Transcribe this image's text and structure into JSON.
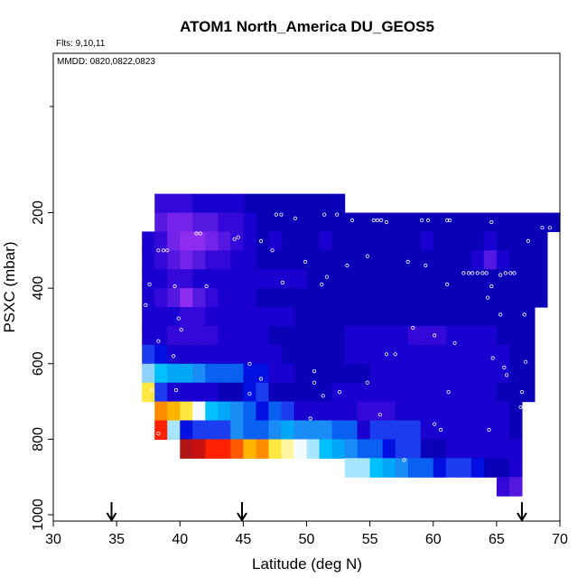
{
  "chart_data": {
    "type": "heatmap",
    "title": "ATOM1 North_America DU_GEOS5",
    "annotations": {
      "flights": "Flts: 9,10,11",
      "dates": "MMDD: 0820,0822,0823"
    },
    "xlabel": "Latitude (deg N)",
    "ylabel": "PSXC (mbar)",
    "xlim": [
      30,
      70
    ],
    "ylim": [
      1000,
      0
    ],
    "y_reversed": true,
    "x_ticks": [
      "30",
      "35",
      "40",
      "45",
      "50",
      "55",
      "60",
      "65",
      "70"
    ],
    "y_ticks": [
      "200",
      "400",
      "600",
      "800",
      "1000"
    ],
    "grid": false,
    "arrows_at_latitude": [
      34.6,
      44.9,
      67.0
    ],
    "colors": {
      "very_low": "#000080",
      "low": "#2a00c8",
      "mid_low": "#5010e0",
      "high": "#8f2cf2",
      "cyan": "#00b0f0",
      "white": "#f8f8ff",
      "yellow": "#fff070",
      "orange": "#ff9000",
      "red": "#ff1000",
      "dark_red": "#b01010",
      "marker": "#ffffff"
    },
    "cell_grid": {
      "lat_start": 34.0,
      "lat_step": 1.0,
      "pres_start": 150,
      "pres_step": 50,
      "rows": [
        [
          "",
          "",
          "",
          "",
          "v3",
          "v3",
          "v3",
          "v2",
          "v2",
          "v2",
          "v2",
          "v1",
          "v1",
          "v1",
          "v1",
          "v1",
          "v1",
          "v1",
          "v1",
          "",
          "",
          "",
          "",
          "",
          "",
          "",
          "",
          "",
          "",
          "",
          "",
          "",
          "",
          "",
          "",
          ""
        ],
        [
          "",
          "",
          "",
          "",
          "v4",
          "v5",
          "v5",
          "v4",
          "v4",
          "v3",
          "v3",
          "v2",
          "v1",
          "v1",
          "v1",
          "v1",
          "v1",
          "v1",
          "v1",
          "v1",
          "v1",
          "v1",
          "v1",
          "v1",
          "v1",
          "v1",
          "v1",
          "v1",
          "v1",
          "v1",
          "v1",
          "v1",
          "v1",
          "v1",
          "v1",
          "v1"
        ],
        [
          "",
          "",
          "",
          "v2",
          "v3",
          "v5",
          "v6",
          "v6",
          "v5",
          "v4",
          "v3",
          "v2",
          "v1",
          "v2",
          "v1",
          "v1",
          "v1",
          "v2",
          "v1",
          "v1",
          "v1",
          "v1",
          "v1",
          "v1",
          "v1",
          "v2",
          "v1",
          "v1",
          "v1",
          "v1",
          "v2",
          "v1",
          "v1",
          "v1",
          "v1",
          ""
        ],
        [
          "",
          "",
          "",
          "v2",
          "v3",
          "v4",
          "v5",
          "v4",
          "v3",
          "v3",
          "v2",
          "v2",
          "v1",
          "v1",
          "v1",
          "v1",
          "v1",
          "v1",
          "v1",
          "v1",
          "v1",
          "v1",
          "v1",
          "v1",
          "v1",
          "v1",
          "v1",
          "v1",
          "v1",
          "v2",
          "v4",
          "v2",
          "v1",
          "v1",
          "v1",
          ""
        ],
        [
          "",
          "",
          "",
          "v2",
          "v2",
          "v3",
          "v3",
          "v2",
          "v2",
          "v2",
          "v2",
          "v2",
          "v2",
          "v2",
          "v2",
          "v2",
          "v1",
          "v1",
          "v1",
          "v1",
          "v1",
          "v1",
          "v1",
          "v1",
          "v1",
          "v1",
          "v1",
          "v1",
          "v1",
          "v1",
          "v1",
          "v1",
          "v1",
          "v1",
          "v1",
          ""
        ],
        [
          "",
          "",
          "",
          "v2",
          "v3",
          "v4",
          "v6",
          "v4",
          "v3",
          "v2",
          "v2",
          "v2",
          "v1",
          "v1",
          "v1",
          "v1",
          "v1",
          "v1",
          "v1",
          "v1",
          "v1",
          "v1",
          "v1",
          "v1",
          "v1",
          "v1",
          "v1",
          "v1",
          "v1",
          "v1",
          "v1",
          "v1",
          "v1",
          "v1",
          "v1",
          ""
        ],
        [
          "",
          "",
          "",
          "v2",
          "v2",
          "v2",
          "v3",
          "v3",
          "v2",
          "v2",
          "v2",
          "v2",
          "v2",
          "v2",
          "v2",
          "v1",
          "v1",
          "v1",
          "v1",
          "v1",
          "v1",
          "v1",
          "v1",
          "v1",
          "v1",
          "v1",
          "v1",
          "v1",
          "v1",
          "v1",
          "v1",
          "v1",
          "v1",
          "v1",
          "",
          ""
        ],
        [
          "",
          "",
          "",
          "v2",
          "v2",
          "v3",
          "v3",
          "v3",
          "v3",
          "v2",
          "v2",
          "v2",
          "v2",
          "v1",
          "v1",
          "v1",
          "v1",
          "v1",
          "v1",
          "v2",
          "v2",
          "v2",
          "v2",
          "v2",
          "v3",
          "v3",
          "v3",
          "v2",
          "v2",
          "v2",
          "v2",
          "v1",
          "v1",
          "v1",
          "",
          ""
        ],
        [
          "",
          "",
          "",
          "b2",
          "b1",
          "v2",
          "v2",
          "v2",
          "v2",
          "v2",
          "v2",
          "v2",
          "v2",
          "v2",
          "v1",
          "v1",
          "v1",
          "v1",
          "v1",
          "v2",
          "v2",
          "v2",
          "v2",
          "v2",
          "v2",
          "v2",
          "v2",
          "v2",
          "v2",
          "v2",
          "v2",
          "v2",
          "v1",
          "v1",
          "",
          ""
        ],
        [
          "",
          "",
          "",
          "b6",
          "c4",
          "c3",
          "c3",
          "c2",
          "c1",
          "c1",
          "c1",
          "b1",
          "b1",
          "v2",
          "v2",
          "v1",
          "v1",
          "v1",
          "v1",
          "v1",
          "v1",
          "v2",
          "v2",
          "v2",
          "v2",
          "v2",
          "v2",
          "v2",
          "v2",
          "v2",
          "v2",
          "v2",
          "v1",
          "v1",
          "",
          ""
        ],
        [
          "",
          "",
          "",
          "y1",
          "b2",
          "v2",
          "v2",
          "v2",
          "v2",
          "v1",
          "v1",
          "b1",
          "b2",
          "v1",
          "v1",
          "v1",
          "v1",
          "v1",
          "v2",
          "v2",
          "v2",
          "v2",
          "v2",
          "v2",
          "v2",
          "v2",
          "v2",
          "v2",
          "v2",
          "v2",
          "v2",
          "v1",
          "v1",
          "v1",
          "",
          ""
        ],
        [
          "",
          "",
          "",
          "",
          "o2",
          "o1",
          "y1",
          "w1",
          "c4",
          "c3",
          "c2",
          "c1",
          "b1",
          "c1",
          "b2",
          "v2",
          "v2",
          "v2",
          "v2",
          "v2",
          "v3",
          "v3",
          "v3",
          "v2",
          "v2",
          "v2",
          "v2",
          "v2",
          "v2",
          "v2",
          "v2",
          "v2",
          "v1",
          "",
          "",
          ""
        ],
        [
          "",
          "",
          "",
          "",
          "r1",
          "c5",
          "b1",
          "b2",
          "b2",
          "b2",
          "c2",
          "c1",
          "c1",
          "c2",
          "c3",
          "c2",
          "c2",
          "c2",
          "c1",
          "c1",
          "b3",
          "b2",
          "b2",
          "b2",
          "b2",
          "v2",
          "v2",
          "v2",
          "v2",
          "v2",
          "v2",
          "v2",
          "v1",
          "",
          "",
          ""
        ],
        [
          "",
          "",
          "",
          "",
          "",
          "",
          "d1",
          "d2",
          "r1",
          "r1",
          "r2",
          "o1",
          "o2",
          "y1",
          "y2",
          "w1",
          "c5",
          "c4",
          "c3",
          "c2",
          "c1",
          "c1",
          "b1",
          "b2",
          "b2",
          "v1",
          "v1",
          "v2",
          "v2",
          "v2",
          "v2",
          "v2",
          "v2",
          "",
          "",
          ""
        ],
        [
          "",
          "",
          "",
          "",
          "",
          "",
          "",
          "",
          "",
          "",
          "",
          "",
          "",
          "",
          "",
          "",
          "",
          "",
          "",
          "c5",
          "c5",
          "c4",
          "c3",
          "c2",
          "c1",
          "c1",
          "b1",
          "b2",
          "b2",
          "b1",
          "v1",
          "v1",
          "v2",
          "",
          "",
          ""
        ],
        [
          "",
          "",
          "",
          "",
          "",
          "",
          "",
          "",
          "",
          "",
          "",
          "",
          "",
          "",
          "",
          "",
          "",
          "",
          "",
          "",
          "",
          "",
          "",
          "",
          "",
          "",
          "",
          "",
          "",
          "",
          "",
          "v3",
          "v4",
          "",
          "",
          ""
        ]
      ]
    }
  }
}
